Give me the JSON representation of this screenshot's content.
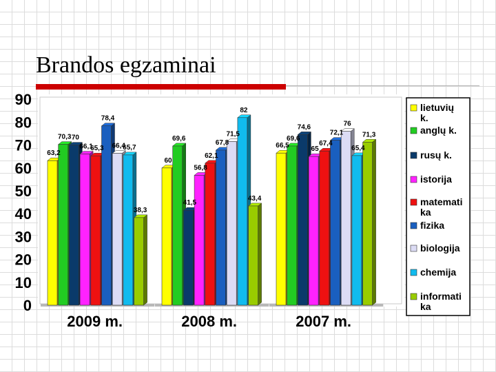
{
  "slide": {
    "title": "Brandos egzaminai"
  },
  "chart_data": {
    "type": "bar",
    "title": "",
    "xlabel": "",
    "ylabel": "",
    "ylim": [
      0,
      90
    ],
    "yticks": [
      "0",
      "10",
      "20",
      "30",
      "40",
      "50",
      "60",
      "70",
      "80",
      "90"
    ],
    "categories": [
      "2009 m.",
      "2008 m.",
      "2007 m."
    ],
    "series": [
      {
        "name": "lietuvių k.",
        "color": "#ffff00",
        "values": [
          63.2,
          60,
          66.5
        ],
        "labels": [
          "63,2",
          "60",
          "66,5"
        ]
      },
      {
        "name": "anglų k.",
        "color": "#22cc22",
        "values": [
          70.3,
          69.6,
          69.6
        ],
        "labels": [
          "70,3",
          "69,6",
          "69,6"
        ]
      },
      {
        "name": "rusų k.",
        "color": "#0a3a6a",
        "values": [
          70,
          41.5,
          74.6
        ],
        "labels": [
          "70",
          "41,5",
          "74,6"
        ]
      },
      {
        "name": "istorija",
        "color": "#ff22ff",
        "values": [
          66.1,
          56.8,
          65
        ],
        "labels": [
          "66,1",
          "56,8",
          "65"
        ]
      },
      {
        "name": "matematika",
        "color": "#ee1111",
        "values": [
          65.3,
          62.1,
          67.4
        ],
        "labels": [
          "65,3",
          "62,1",
          "67,4"
        ]
      },
      {
        "name": "fizika",
        "color": "#1a5fbf",
        "values": [
          78.4,
          67.8,
          72.1
        ],
        "labels": [
          "78,4",
          "67,8",
          "72,1"
        ]
      },
      {
        "name": "biologija",
        "color": "#dcdcf5",
        "values": [
          66.4,
          71.5,
          76
        ],
        "labels": [
          "66,4",
          "71,5",
          "76"
        ]
      },
      {
        "name": "chemija",
        "color": "#11bbee",
        "values": [
          65.7,
          82,
          65.4
        ],
        "labels": [
          "65,7",
          "82",
          "65,4"
        ]
      },
      {
        "name": "informatika",
        "color": "#99cc00",
        "values": [
          38.3,
          43.4,
          71.3
        ],
        "labels": [
          "38,3",
          "43,4",
          "71,3"
        ]
      }
    ],
    "legend": {
      "placement": "right",
      "lines": [
        [
          "lietuvių",
          "k."
        ],
        [
          "anglų k."
        ],
        [
          "rusų k."
        ],
        [
          "istorija"
        ],
        [
          "matemati",
          "ka"
        ],
        [
          "fizika"
        ],
        [
          "biologija"
        ],
        [
          "chemija"
        ],
        [
          "informati",
          "ka"
        ]
      ]
    },
    "grid": false
  }
}
